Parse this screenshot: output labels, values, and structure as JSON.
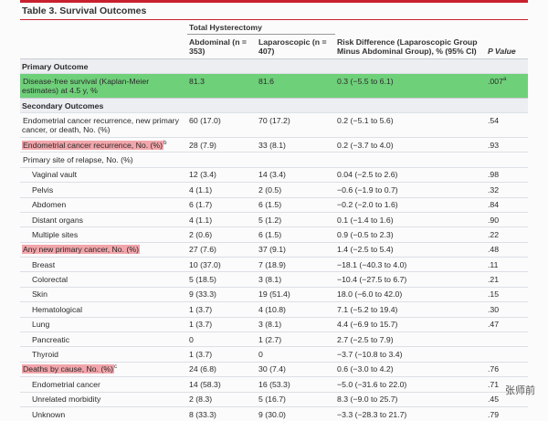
{
  "title": "Table 3. Survival Outcomes",
  "header": {
    "group": "Total Hysterectomy",
    "columns": [
      "Abdominal (n = 353)",
      "Laparoscopic (n = 407)",
      "Risk Difference (Laparoscopic Group Minus Abdominal Group), % (95% CI)",
      "P Value"
    ]
  },
  "sections": [
    {
      "title": "Primary Outcome",
      "rows": [
        {
          "label": "Disease-free survival (Kaplan-Meier estimates) at 4.5 y, %",
          "cells": [
            "81.3",
            "81.6",
            "0.3 (−5.5 to 6.1)",
            ".007"
          ],
          "p_note": "a",
          "highlight": "#6fd07a"
        }
      ]
    },
    {
      "title": "Secondary Outcomes",
      "rows": [
        {
          "label": "Endometrial cancer recurrence, new primary cancer, or death, No. (%)",
          "cells": [
            "60 (17.0)",
            "70 (17.2)",
            "0.2 (−5.1 to 5.6)",
            ".54"
          ]
        },
        {
          "label": "Endometrial cancer recurrence, No. (%)",
          "note": "b",
          "cells": [
            "28 (7.9)",
            "33 (8.1)",
            "0.2 (−3.7 to 4.0)",
            ".93"
          ],
          "highlight": "#f2a6ab"
        },
        {
          "label": "Primary site of relapse, No. (%)",
          "cells": [],
          "sub": [
            {
              "label": "Vaginal vault",
              "cells": [
                "12 (3.4)",
                "14 (3.4)",
                "0.04 (−2.5 to 2.6)",
                ".98"
              ]
            },
            {
              "label": "Pelvis",
              "cells": [
                "4 (1.1)",
                "2 (0.5)",
                "−0.6 (−1.9 to 0.7)",
                ".32"
              ]
            },
            {
              "label": "Abdomen",
              "cells": [
                "6 (1.7)",
                "6 (1.5)",
                "−0.2 (−2.0 to 1.6)",
                ".84"
              ]
            },
            {
              "label": "Distant organs",
              "cells": [
                "4 (1.1)",
                "5 (1.2)",
                "0.1 (−1.4 to 1.6)",
                ".90"
              ]
            },
            {
              "label": "Multiple sites",
              "cells": [
                "2 (0.6)",
                "6 (1.5)",
                "0.9 (−0.5 to 2.3)",
                ".22"
              ]
            }
          ]
        },
        {
          "label": "Any new primary cancer, No. (%)",
          "cells": [
            "27 (7.6)",
            "37 (9.1)",
            "1.4 (−2.5 to 5.4)",
            ".48"
          ],
          "highlight": "#f2a6ab",
          "sub": [
            {
              "label": "Breast",
              "cells": [
                "10 (37.0)",
                "7 (18.9)",
                "−18.1 (−40.3 to 4.0)",
                ".11"
              ]
            },
            {
              "label": "Colorectal",
              "cells": [
                "5 (18.5)",
                "3 (8.1)",
                "−10.4 (−27.5 to 6.7)",
                ".21"
              ]
            },
            {
              "label": "Skin",
              "cells": [
                "9 (33.3)",
                "19 (51.4)",
                "18.0 (−6.0 to 42.0)",
                ".15"
              ]
            },
            {
              "label": "Hematological",
              "cells": [
                "1 (3.7)",
                "4 (10.8)",
                "7.1 (−5.2 to 19.4)",
                ".30"
              ]
            },
            {
              "label": "Lung",
              "cells": [
                "1 (3.7)",
                "3 (8.1)",
                "4.4 (−6.9 to 15.7)",
                ".47"
              ]
            },
            {
              "label": "Pancreatic",
              "cells": [
                "0",
                "1 (2.7)",
                "2.7 (−2.5 to 7.9)"
              ]
            },
            {
              "label": "Thyroid",
              "cells": [
                "1 (3.7)",
                "0",
                "−3.7 (−10.8 to 3.4)"
              ]
            }
          ]
        },
        {
          "label": "Deaths by cause, No. (%)",
          "note": "c",
          "cells": [
            "24 (6.8)",
            "30 (7.4)",
            "0.6 (−3.0 to 4.2)",
            ".76"
          ],
          "highlight": "#f2a6ab",
          "sub": [
            {
              "label": "Endometrial cancer",
              "cells": [
                "14 (58.3)",
                "16 (53.3)",
                "−5.0 (−31.6 to 22.0)",
                ".71"
              ]
            },
            {
              "label": "Unrelated morbidity",
              "cells": [
                "2 (8.3)",
                "5 (16.7)",
                "8.3 (−9.0 to 25.7)",
                ".45"
              ]
            },
            {
              "label": "Unknown",
              "cells": [
                "8 (33.3)",
                "9 (30.0)",
                "−3.3 (−28.3 to 21.7)",
                ".79"
              ]
            }
          ]
        }
      ]
    }
  ],
  "watermark": "张师前"
}
